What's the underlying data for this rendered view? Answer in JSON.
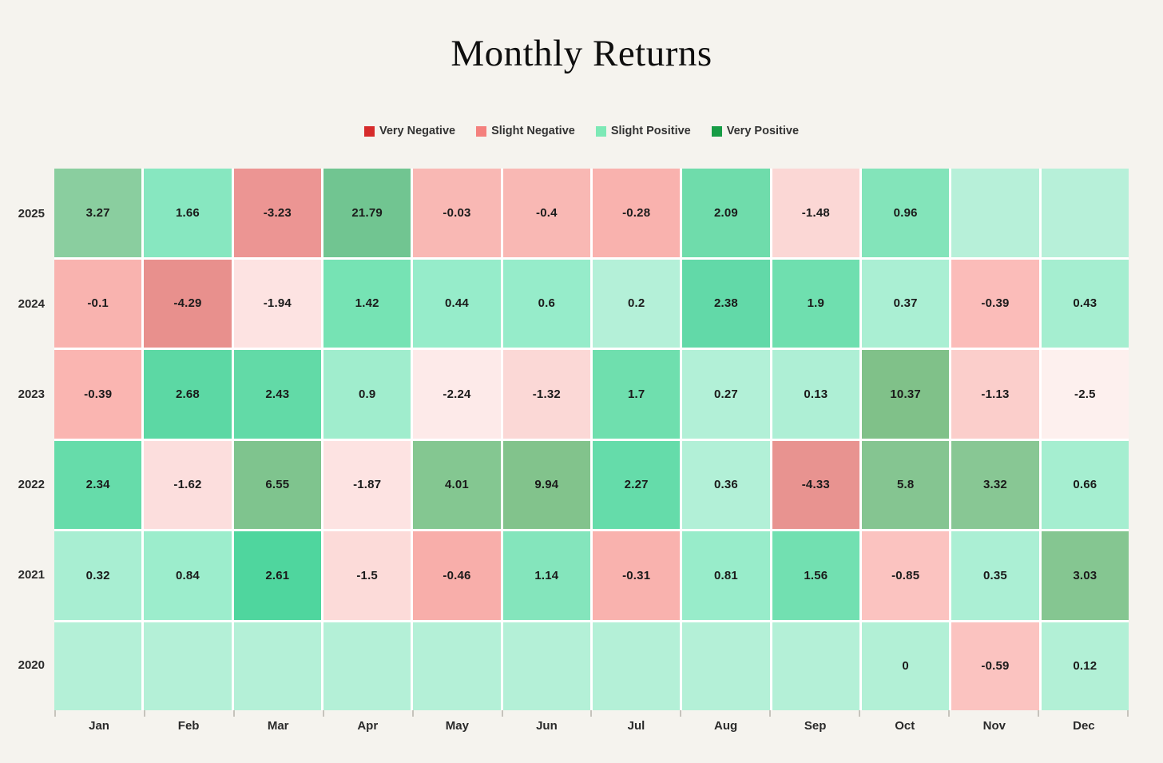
{
  "page": {
    "background": "#f5f3ee",
    "grid_gap_color": "#ffffff",
    "tick_color": "#c6c3bc"
  },
  "header": {
    "title": "Monthly Returns"
  },
  "legend": {
    "items": [
      {
        "label": "Very Negative",
        "color": "#d62b2b"
      },
      {
        "label": "Slight Negative",
        "color": "#f4807d"
      },
      {
        "label": "Slight Positive",
        "color": "#7de9b6"
      },
      {
        "label": "Very Positive",
        "color": "#179c45"
      }
    ]
  },
  "chart_data": {
    "type": "heatmap",
    "title": "Monthly Returns",
    "xlabel": "",
    "ylabel": "",
    "legend_position": "top",
    "grid": false,
    "legend": [
      "Very Negative",
      "Slight Negative",
      "Slight Positive",
      "Very Positive"
    ],
    "columns": [
      "Jan",
      "Feb",
      "Mar",
      "Apr",
      "May",
      "Jun",
      "Jul",
      "Aug",
      "Sep",
      "Oct",
      "Nov",
      "Dec"
    ],
    "rows": [
      {
        "label": "2025",
        "values": [
          3.27,
          1.66,
          -3.23,
          21.79,
          -0.03,
          -0.4,
          -0.28,
          2.09,
          -1.48,
          0.96,
          null,
          null
        ],
        "colors": [
          "#8ace9f",
          "#87e7c0",
          "#ec9593",
          "#71c591",
          "#f9b8b4",
          "#f9b8b4",
          "#f9b2ae",
          "#6fdcab",
          "#fbd7d5",
          "#83e4ba",
          "#b7f0d9",
          "#b7f0d9"
        ]
      },
      {
        "label": "2024",
        "values": [
          -0.1,
          -4.29,
          -1.94,
          1.42,
          0.44,
          0.6,
          0.2,
          2.38,
          1.9,
          0.37,
          -0.39,
          0.43
        ],
        "colors": [
          "#f9b3af",
          "#e8908d",
          "#fde3e2",
          "#76e3b4",
          "#96ecca",
          "#96ecca",
          "#b4f0d8",
          "#62d9a8",
          "#6fdfaf",
          "#aaefd3",
          "#fbbcb9",
          "#a5eed0"
        ]
      },
      {
        "label": "2023",
        "values": [
          -0.39,
          2.68,
          2.43,
          0.9,
          -2.24,
          -1.32,
          1.7,
          0.27,
          0.13,
          10.37,
          -1.13,
          -2.5
        ],
        "colors": [
          "#fab5b1",
          "#5cd8a4",
          "#62daa7",
          "#a0edcd",
          "#fdeae9",
          "#fbd8d6",
          "#6fdfae",
          "#b2f0d7",
          "#aeefd5",
          "#80c189",
          "#fbcecb",
          "#fdf0ee"
        ]
      },
      {
        "label": "2022",
        "values": [
          2.34,
          -1.62,
          6.55,
          -1.87,
          4.01,
          9.94,
          2.27,
          0.36,
          -4.33,
          5.8,
          3.32,
          0.66
        ],
        "colors": [
          "#66dcaa",
          "#fcdedd",
          "#7fc48e",
          "#fde3e2",
          "#84c791",
          "#82c38c",
          "#65dcaa",
          "#b2f0d7",
          "#e89390",
          "#85c591",
          "#88c794",
          "#a5eed0"
        ]
      },
      {
        "label": "2021",
        "values": [
          0.32,
          0.84,
          2.61,
          -1.5,
          -0.46,
          1.14,
          -0.31,
          0.81,
          1.56,
          -0.85,
          0.35,
          3.03
        ],
        "colors": [
          "#a8eed2",
          "#9cedcc",
          "#4fd69e",
          "#fcdbd9",
          "#f8aeaa",
          "#84e5bc",
          "#f9b2ae",
          "#98ecca",
          "#72e0b1",
          "#fbc3c0",
          "#abefd4",
          "#85c691"
        ]
      },
      {
        "label": "2020",
        "values": [
          null,
          null,
          null,
          null,
          null,
          null,
          null,
          null,
          null,
          0,
          -0.59,
          0.12
        ],
        "colors": [
          "#b4f0d7",
          "#b4f0d7",
          "#b4f0d7",
          "#b4f0d7",
          "#b4f0d7",
          "#b4f0d7",
          "#b4f0d7",
          "#b4f0d7",
          "#b4f0d7",
          "#b2f0d6",
          "#fbc3c0",
          "#b2f0d6"
        ]
      }
    ]
  }
}
